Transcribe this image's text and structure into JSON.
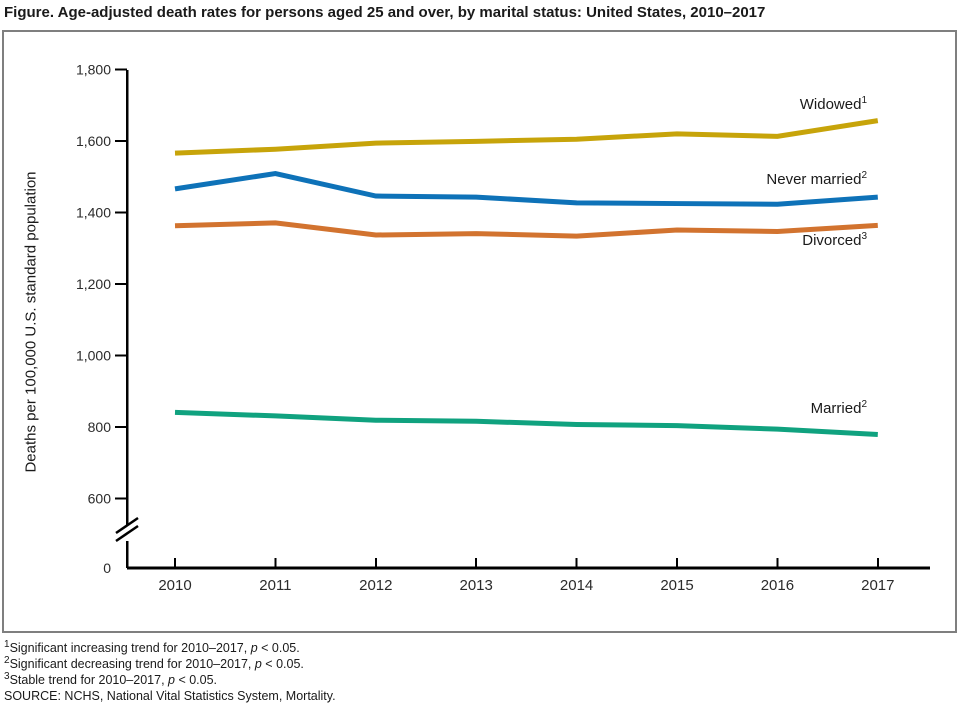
{
  "title": "Figure. Age-adjusted death rates for persons aged 25 and over, by marital status: United States, 2010–2017",
  "chart_data": {
    "type": "line",
    "x": [
      2010,
      2011,
      2012,
      2013,
      2014,
      2015,
      2016,
      2017
    ],
    "series": [
      {
        "name": "Widowed",
        "footnote": "1",
        "color": "#C7A40A",
        "values": [
          1566,
          1577,
          1594,
          1599,
          1605,
          1620,
          1613,
          1657
        ]
      },
      {
        "name": "Never married",
        "footnote": "2",
        "color": "#0E72B8",
        "values": [
          1466,
          1509,
          1446,
          1443,
          1427,
          1425,
          1423,
          1443
        ]
      },
      {
        "name": "Divorced",
        "footnote": "3",
        "color": "#D2732F",
        "values": [
          1363,
          1371,
          1337,
          1341,
          1334,
          1351,
          1347,
          1364
        ]
      },
      {
        "name": "Married",
        "footnote": "2",
        "color": "#10A27F",
        "values": [
          841,
          831,
          819,
          816,
          807,
          804,
          794,
          779
        ]
      }
    ],
    "title": "Figure. Age-adjusted death rates for persons aged 25 and over, by marital status: United States, 2010–2017",
    "xlabel": "",
    "ylabel": "Deaths per 100,000 U.S. standard population",
    "yticks": [
      0,
      600,
      800,
      1000,
      1200,
      1400,
      1600,
      1800
    ],
    "axis_break_between": [
      0,
      600
    ],
    "grid": false,
    "legend_position": "labels-at-line-ends-right"
  },
  "footnotes": [
    {
      "sup": "1",
      "before": "Significant increasing trend for 2010–2017, ",
      "p": "p",
      "after": " < 0.05."
    },
    {
      "sup": "2",
      "before": "Significant decreasing trend for 2010–2017, ",
      "p": "p",
      "after": " < 0.05."
    },
    {
      "sup": "3",
      "before": "Stable trend for 2010–2017, ",
      "p": "p",
      "after": " < 0.05."
    },
    {
      "sup": "",
      "before": "SOURCE: NCHS, National Vital Statistics System, Mortality.",
      "p": "",
      "after": ""
    }
  ],
  "colors": {
    "axis": "#000000",
    "box_border": "#7F7F7F",
    "tick_label": "#2B2B2B",
    "widowed": "#C7A40A",
    "never_married": "#0E72B8",
    "divorced": "#D2732F",
    "married": "#10A27F"
  }
}
